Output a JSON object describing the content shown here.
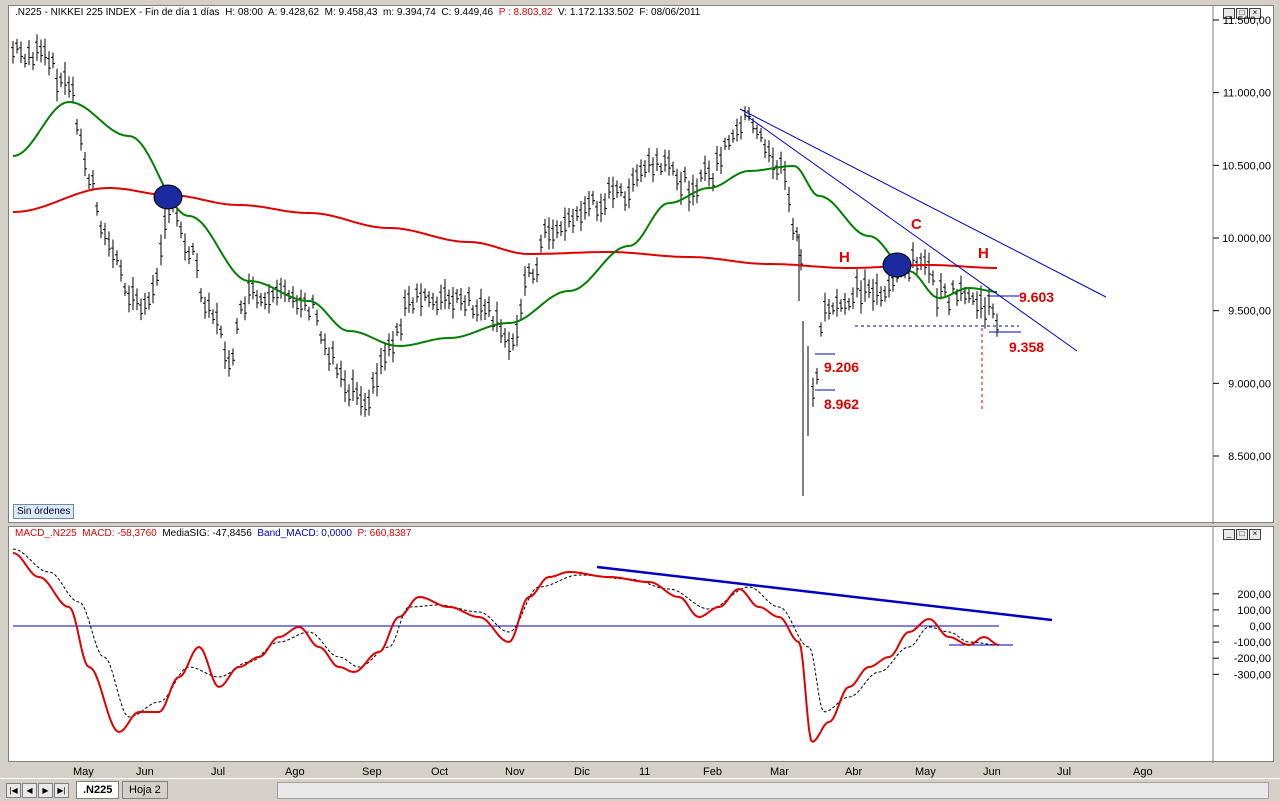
{
  "top_header": {
    "symbol": ".N225 - NIKKEI 225 INDEX - Fin de día 1 días",
    "h": "H: 08:00",
    "a": "A: 9.428,62",
    "m": "M: 9.458,43",
    "mm": "m: 9.394,74",
    "c": "C: 9.449,46",
    "p": "P : 8.803,82",
    "v": "V: 1.172.133.502",
    "f": "F: 08/06/2011"
  },
  "bottom_header": {
    "name": "MACD_.N225",
    "macd": "MACD: -58,3760",
    "sig": "MediaSIG: -47,8456",
    "band": "Band_MACD: 0,0000",
    "p": "P: 660,8387"
  },
  "sin_ordenes": "Sin órdenes",
  "price_axis": [
    "11.500,00",
    "11.000,00",
    "10.500,00",
    "10.000,00",
    "9.500,00",
    "9.000,00",
    "8.500,00"
  ],
  "macd_axis": [
    "200,00",
    "100,00",
    "0,00",
    "-100,00",
    "-200,00",
    "-300,00"
  ],
  "months": [
    "May",
    "Jun",
    "Jul",
    "Ago",
    "Sep",
    "Oct",
    "Nov",
    "Dic",
    "11",
    "Feb",
    "Mar",
    "Abr",
    "May",
    "Jun",
    "Jul",
    "Ago"
  ],
  "annotations": {
    "h1": "H",
    "c": "C",
    "h2": "H",
    "v9603": "9.603",
    "v9358": "9.358",
    "v9206": "9.206",
    "v8962": "8.962"
  },
  "tabs": {
    "active": ".N225",
    "other": "Hoja 2"
  },
  "colors": {
    "price": "#000000",
    "ma_fast": "#008000",
    "ma_slow": "#e00000",
    "trend": "#0000c0",
    "macd": "#e00000",
    "signal": "#000000"
  },
  "chart_data": [
    {
      "type": "line",
      "title": ".N225 - NIKKEI 225 INDEX",
      "x": [
        "May",
        "Jun",
        "Jul",
        "Ago",
        "Sep",
        "Oct",
        "Nov",
        "Dic",
        "11",
        "Feb",
        "Mar",
        "Abr",
        "May",
        "Jun"
      ],
      "ylim": [
        8200,
        11600
      ],
      "series": [
        {
          "values": [
            11200,
            10200,
            9300,
            9650,
            9000,
            9600,
            9400,
            10200,
            10400,
            10700,
            10300,
            9600,
            9800,
            9500
          ]
        },
        {
          "values": [
            10650,
            10950,
            10000,
            9750,
            9500,
            9350,
            9500,
            9800,
            10200,
            10400,
            10500,
            9900,
            9600,
            9620
          ]
        },
        {
          "values": [
            10250,
            10300,
            10250,
            10150,
            10050,
            9950,
            9900,
            9950,
            9940,
            9880,
            9840,
            9820,
            9800,
            9800
          ]
        }
      ]
    },
    {
      "type": "line",
      "title": "MACD_.N225",
      "x": [
        "May",
        "Jun",
        "Jul",
        "Ago",
        "Sep",
        "Oct",
        "Nov",
        "Dic",
        "11",
        "Feb",
        "Mar",
        "Abr",
        "May",
        "Jun"
      ],
      "ylim": [
        -380,
        240
      ],
      "series": [
        {
          "values": [
            200,
            -300,
            -180,
            -80,
            -140,
            70,
            -40,
            150,
            150,
            60,
            -20,
            -200,
            20,
            -60
          ]
        },
        {
          "values": [
            210,
            -260,
            -150,
            -60,
            -110,
            70,
            -20,
            140,
            145,
            80,
            10,
            -180,
            0,
            -50
          ]
        }
      ]
    }
  ]
}
